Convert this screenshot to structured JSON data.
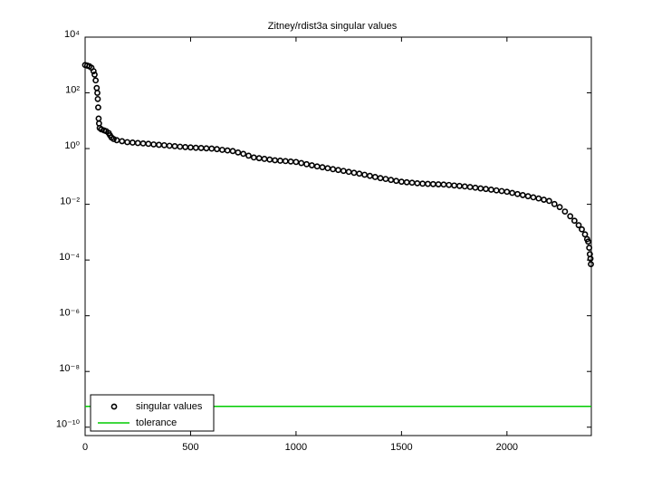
{
  "chart_data": {
    "type": "scatter",
    "title": "Zitney/rdist3a singular values",
    "xlim": [
      0,
      2400
    ],
    "xticks": [
      0,
      500,
      1000,
      1500,
      2000
    ],
    "ylim": [
      5e-11,
      10000
    ],
    "yscale": "log",
    "yticks": [
      {
        "value": 10000,
        "label": "10⁴"
      },
      {
        "value": 100,
        "label": "10²"
      },
      {
        "value": 1,
        "label": "10⁰"
      },
      {
        "value": 0.01,
        "label": "10⁻²"
      },
      {
        "value": 0.0001,
        "label": "10⁻⁴"
      },
      {
        "value": 1e-06,
        "label": "10⁻⁶"
      },
      {
        "value": 1e-08,
        "label": "10⁻⁸"
      },
      {
        "value": 1e-10,
        "label": "10⁻¹⁰"
      }
    ],
    "legend": "lower left",
    "series": [
      {
        "name": "singular values",
        "color": "#000000",
        "marker": "circle",
        "x": [
          0,
          10,
          20,
          30,
          40,
          45,
          50,
          55,
          58,
          60,
          62,
          64,
          66,
          69,
          77,
          90,
          100,
          112,
          118,
          125,
          135,
          150,
          175,
          200,
          225,
          250,
          275,
          300,
          325,
          350,
          375,
          400,
          425,
          450,
          475,
          500,
          525,
          550,
          575,
          600,
          625,
          650,
          675,
          700,
          725,
          750,
          775,
          800,
          825,
          850,
          875,
          900,
          925,
          950,
          975,
          1000,
          1025,
          1050,
          1075,
          1100,
          1125,
          1150,
          1175,
          1200,
          1225,
          1250,
          1275,
          1300,
          1325,
          1350,
          1375,
          1400,
          1425,
          1450,
          1475,
          1500,
          1525,
          1550,
          1575,
          1600,
          1625,
          1650,
          1675,
          1700,
          1725,
          1750,
          1775,
          1800,
          1825,
          1850,
          1875,
          1900,
          1925,
          1950,
          1975,
          2000,
          2025,
          2050,
          2075,
          2100,
          2125,
          2150,
          2175,
          2200,
          2225,
          2250,
          2275,
          2300,
          2320,
          2340,
          2355,
          2370,
          2380,
          2385,
          2390,
          2393,
          2396,
          2398
        ],
        "values": [
          1000,
          950,
          900,
          800,
          600,
          450,
          280,
          150,
          100,
          60,
          30,
          12,
          8,
          5.5,
          4.9,
          4.5,
          4.2,
          3.6,
          3.0,
          2.5,
          2.2,
          2.0,
          1.84,
          1.7,
          1.64,
          1.58,
          1.53,
          1.48,
          1.41,
          1.36,
          1.32,
          1.26,
          1.22,
          1.17,
          1.13,
          1.1,
          1.07,
          1.05,
          1.02,
          1.0,
          0.955,
          0.9,
          0.857,
          0.813,
          0.724,
          0.646,
          0.556,
          0.479,
          0.452,
          0.427,
          0.403,
          0.38,
          0.367,
          0.355,
          0.343,
          0.331,
          0.302,
          0.275,
          0.251,
          0.229,
          0.214,
          0.197,
          0.182,
          0.17,
          0.158,
          0.146,
          0.135,
          0.126,
          0.115,
          0.105,
          0.0955,
          0.0871,
          0.0813,
          0.075,
          0.0692,
          0.0646,
          0.0617,
          0.0596,
          0.0569,
          0.055,
          0.054,
          0.0531,
          0.0521,
          0.0513,
          0.0495,
          0.0473,
          0.0457,
          0.0437,
          0.0417,
          0.0394,
          0.0372,
          0.0355,
          0.0335,
          0.0316,
          0.0299,
          0.0282,
          0.0257,
          0.0234,
          0.0214,
          0.0195,
          0.0178,
          0.0162,
          0.0146,
          0.0132,
          0.0102,
          0.00794,
          0.0055,
          0.00372,
          0.00257,
          0.00178,
          0.00126,
          0.000832,
          0.000562,
          0.000457,
          0.000275,
          0.000162,
          0.000112,
          7.08e-05
        ]
      },
      {
        "name": "tolerance",
        "color": "#00cc00",
        "marker": "line",
        "x": [
          0,
          2400
        ],
        "values": [
          5.6e-10,
          5.6e-10
        ]
      }
    ]
  }
}
